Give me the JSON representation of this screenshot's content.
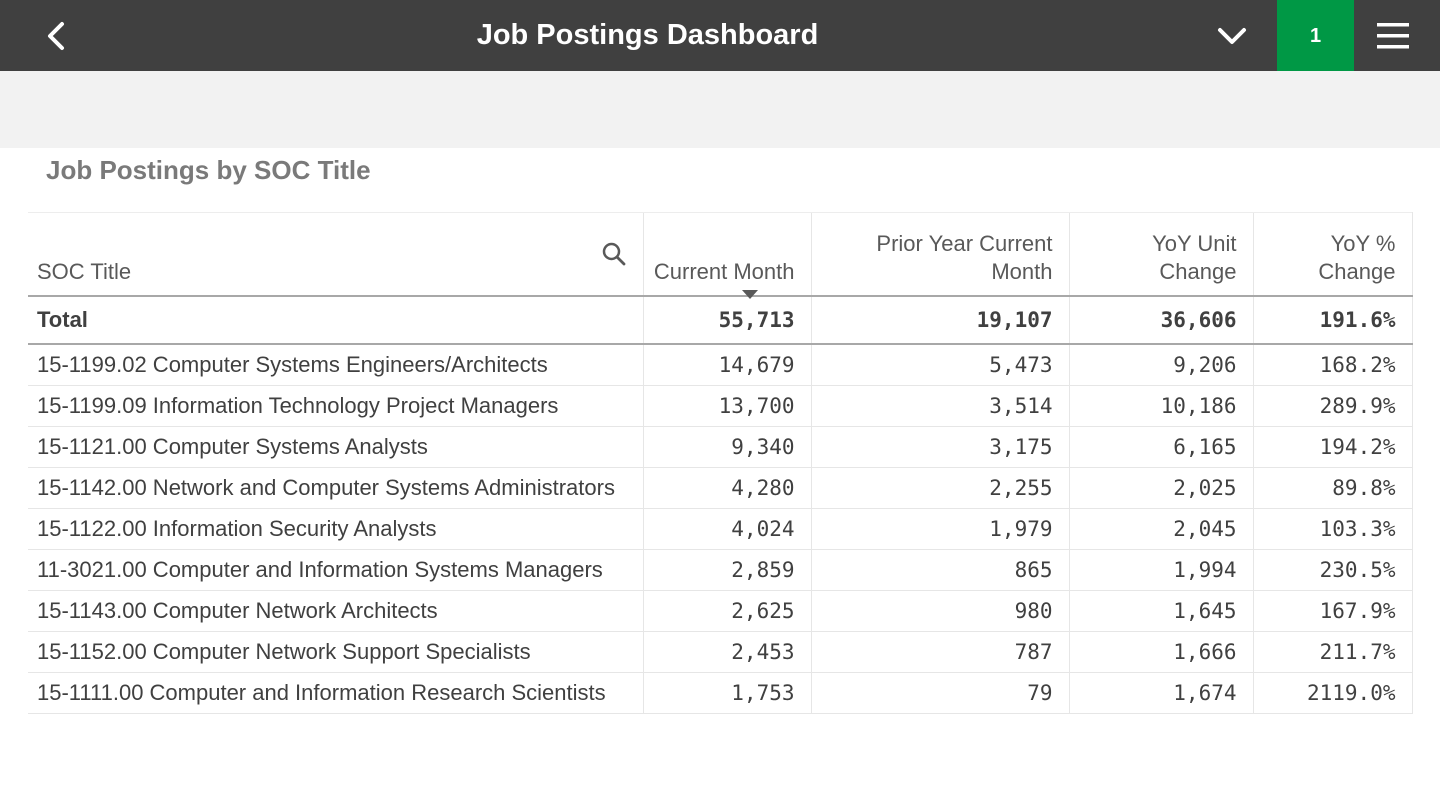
{
  "header": {
    "title": "Job Postings Dashboard",
    "selection_count": "1"
  },
  "panel": {
    "title": "Job Postings by SOC Title"
  },
  "table": {
    "columns": [
      "SOC Title",
      "Current Month",
      "Prior Year Current Month",
      "YoY Unit Change",
      "YoY % Change"
    ],
    "total": [
      "Total",
      "55,713",
      "19,107",
      "36,606",
      "191.6%"
    ],
    "rows": [
      [
        "15-1199.02 Computer Systems Engineers/Architects",
        "14,679",
        "5,473",
        "9,206",
        "168.2%"
      ],
      [
        "15-1199.09 Information Technology Project Managers",
        "13,700",
        "3,514",
        "10,186",
        "289.9%"
      ],
      [
        "15-1121.00 Computer Systems Analysts",
        "9,340",
        "3,175",
        "6,165",
        "194.2%"
      ],
      [
        "15-1142.00 Network and Computer Systems Administrators",
        "4,280",
        "2,255",
        "2,025",
        "89.8%"
      ],
      [
        "15-1122.00 Information Security Analysts",
        "4,024",
        "1,979",
        "2,045",
        "103.3%"
      ],
      [
        "11-3021.00 Computer and Information Systems Managers",
        "2,859",
        "865",
        "1,994",
        "230.5%"
      ],
      [
        "15-1143.00 Computer Network Architects",
        "2,625",
        "980",
        "1,645",
        "167.9%"
      ],
      [
        "15-1152.00 Computer Network Support Specialists",
        "2,453",
        "787",
        "1,666",
        "211.7%"
      ],
      [
        "15-1111.00 Computer and Information Research Scientists",
        "1,753",
        "79",
        "1,674",
        "2119.0%"
      ]
    ]
  },
  "icons": {
    "back": "chevron-left-icon",
    "selections": "chevron-down-icon",
    "menu": "hamburger-menu-icon",
    "search": "search-icon"
  },
  "colors": {
    "topbar": "#404040",
    "selection_badge": "#009845",
    "band": "#f2f2f2",
    "panel_title": "#7a7a7a"
  }
}
